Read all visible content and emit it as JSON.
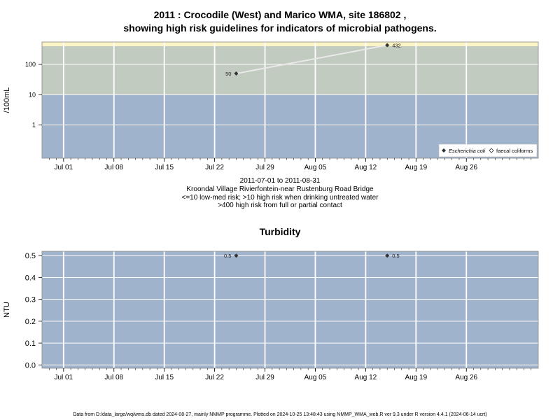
{
  "page": {
    "title_line1": "2011 : Crocodile (West) and Marico WMA, site 186802 ,",
    "title_line2": "showing high risk guidelines for indicators of microbial pathogens.",
    "date_range": "2011-07-01 to 2011-08-31",
    "site_name": "Kroondal Village Rivierfontein-near Rustenburg Road Bridge",
    "guideline_line1": "<=10 low-med risk; >10 high risk when drinking untreated water",
    "guideline_line2": ">400 high risk from full or partial contact",
    "turbidity_title": "Turbidity",
    "footer": "Data from D:/data_large/wq/wms.db dated 2024-08-27, mainly NMMP programme. Plotted on 2024-10-25 13:48:43 using NMMP_WMA_web.R ver 9.3 under R version 4.4.1 (2024-06-14 ucrt)"
  },
  "chart_data": [
    {
      "type": "line",
      "title": "2011 : Crocodile (West) and Marico WMA, site 186802 , showing high risk guidelines for indicators of microbial pathogens.",
      "ylabel": "/100mL",
      "y_scale": "log",
      "x_range": [
        "2011-06-28",
        "2011-09-05"
      ],
      "x_ticks": [
        "Jul 01",
        "Jul 08",
        "Jul 15",
        "Jul 22",
        "Jul 29",
        "Aug 05",
        "Aug 12",
        "Aug 19",
        "Aug 26"
      ],
      "x_tick_dates": [
        "2011-07-01",
        "2011-07-08",
        "2011-07-15",
        "2011-07-22",
        "2011-07-29",
        "2011-08-05",
        "2011-08-12",
        "2011-08-19",
        "2011-08-26"
      ],
      "y_ticks": [
        "1",
        "10",
        "100"
      ],
      "y_tick_values": [
        1,
        10,
        100
      ],
      "ylim": [
        0.08,
        550
      ],
      "bands": [
        {
          "from": 0.08,
          "to": 10,
          "color": "#a0b3cc"
        },
        {
          "from": 10,
          "to": 400,
          "color": "#c2cbc0"
        },
        {
          "from": 400,
          "to": 550,
          "color": "#fcf4c3"
        }
      ],
      "series": [
        {
          "name": "Escherichia coli",
          "dates": [
            "2011-07-25",
            "2011-08-15"
          ],
          "values": [
            50,
            432
          ],
          "labels": [
            "50",
            "432"
          ],
          "color": "#333333",
          "line_color": "#e9e9e9"
        }
      ],
      "legend": {
        "position": "bottom-right",
        "entries": [
          {
            "label": "Escherichia coli",
            "italic": true
          },
          {
            "label": "faecal coliforms",
            "italic": false
          }
        ]
      },
      "grid": true
    },
    {
      "type": "scatter",
      "title": "Turbidity",
      "ylabel": "NTU",
      "x_range": [
        "2011-06-28",
        "2011-09-05"
      ],
      "x_ticks": [
        "Jul 01",
        "Jul 08",
        "Jul 15",
        "Jul 22",
        "Jul 29",
        "Aug 05",
        "Aug 12",
        "Aug 19",
        "Aug 26"
      ],
      "x_tick_dates": [
        "2011-07-01",
        "2011-07-08",
        "2011-07-15",
        "2011-07-22",
        "2011-07-29",
        "2011-08-05",
        "2011-08-12",
        "2011-08-19",
        "2011-08-26"
      ],
      "y_ticks": [
        "0.0",
        "0.1",
        "0.2",
        "0.3",
        "0.4",
        "0.5"
      ],
      "y_tick_values": [
        0,
        0.1,
        0.2,
        0.3,
        0.4,
        0.5
      ],
      "ylim": [
        -0.015,
        0.52
      ],
      "bands": [
        {
          "from": -0.015,
          "to": 0.52,
          "color": "#a0b3cc"
        }
      ],
      "series": [
        {
          "dates": [
            "2011-07-25",
            "2011-08-15"
          ],
          "values": [
            0.5,
            0.5
          ],
          "labels": [
            "0.5",
            "0.5"
          ],
          "color": "#333333"
        }
      ],
      "grid": true
    }
  ]
}
